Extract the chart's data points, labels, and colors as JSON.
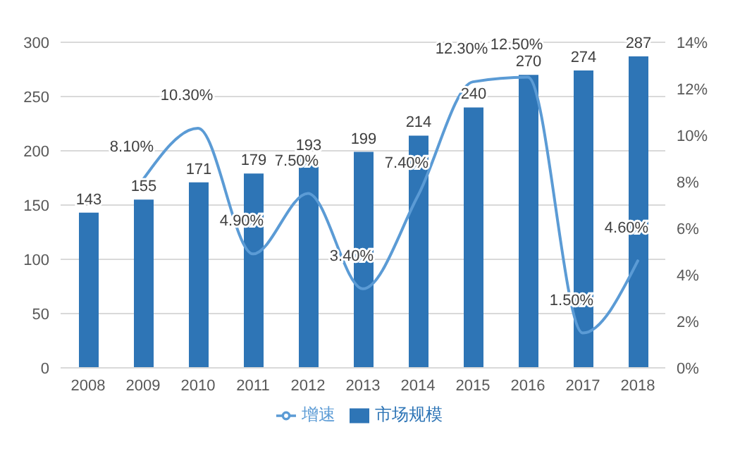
{
  "chart_data": {
    "type": "bar",
    "categories": [
      "2008",
      "2009",
      "2010",
      "2011",
      "2012",
      "2013",
      "2014",
      "2015",
      "2016",
      "2017",
      "2018"
    ],
    "series": [
      {
        "name": "市场规模",
        "color": "#2e75b6",
        "values": [
          143,
          155,
          171,
          179,
          193,
          199,
          214,
          240,
          270,
          274,
          287
        ],
        "value_labels": [
          "143",
          "155",
          "171",
          "179",
          "193",
          "199",
          "214",
          "240",
          "270",
          "274",
          "287"
        ]
      },
      {
        "name": "增速",
        "type": "line",
        "axis": "y2",
        "color": "#5b9bd5",
        "values": [
          null,
          8.1,
          10.3,
          4.9,
          7.5,
          3.4,
          7.4,
          12.3,
          12.5,
          1.5,
          4.6
        ],
        "value_labels": [
          null,
          "8.10%",
          "10.30%",
          "4.90%",
          "7.50%",
          "3.40%",
          "7.40%",
          "12.30%",
          "12.50%",
          "1.50%",
          "4.60%"
        ]
      }
    ],
    "ylim": [
      0,
      300
    ],
    "yticks": [
      0,
      50,
      100,
      150,
      200,
      250,
      300
    ],
    "y2lim": [
      0,
      14
    ],
    "y2ticks": [
      {
        "value": 0,
        "label": "0%"
      },
      {
        "value": 2,
        "label": "2%"
      },
      {
        "value": 4,
        "label": "4%"
      },
      {
        "value": 6,
        "label": "6%"
      },
      {
        "value": 8,
        "label": "8%"
      },
      {
        "value": 10,
        "label": "10%"
      },
      {
        "value": 12,
        "label": "12%"
      },
      {
        "value": 14,
        "label": "14%"
      }
    ],
    "grid": "y",
    "legend": "bottom",
    "marker": "none"
  }
}
